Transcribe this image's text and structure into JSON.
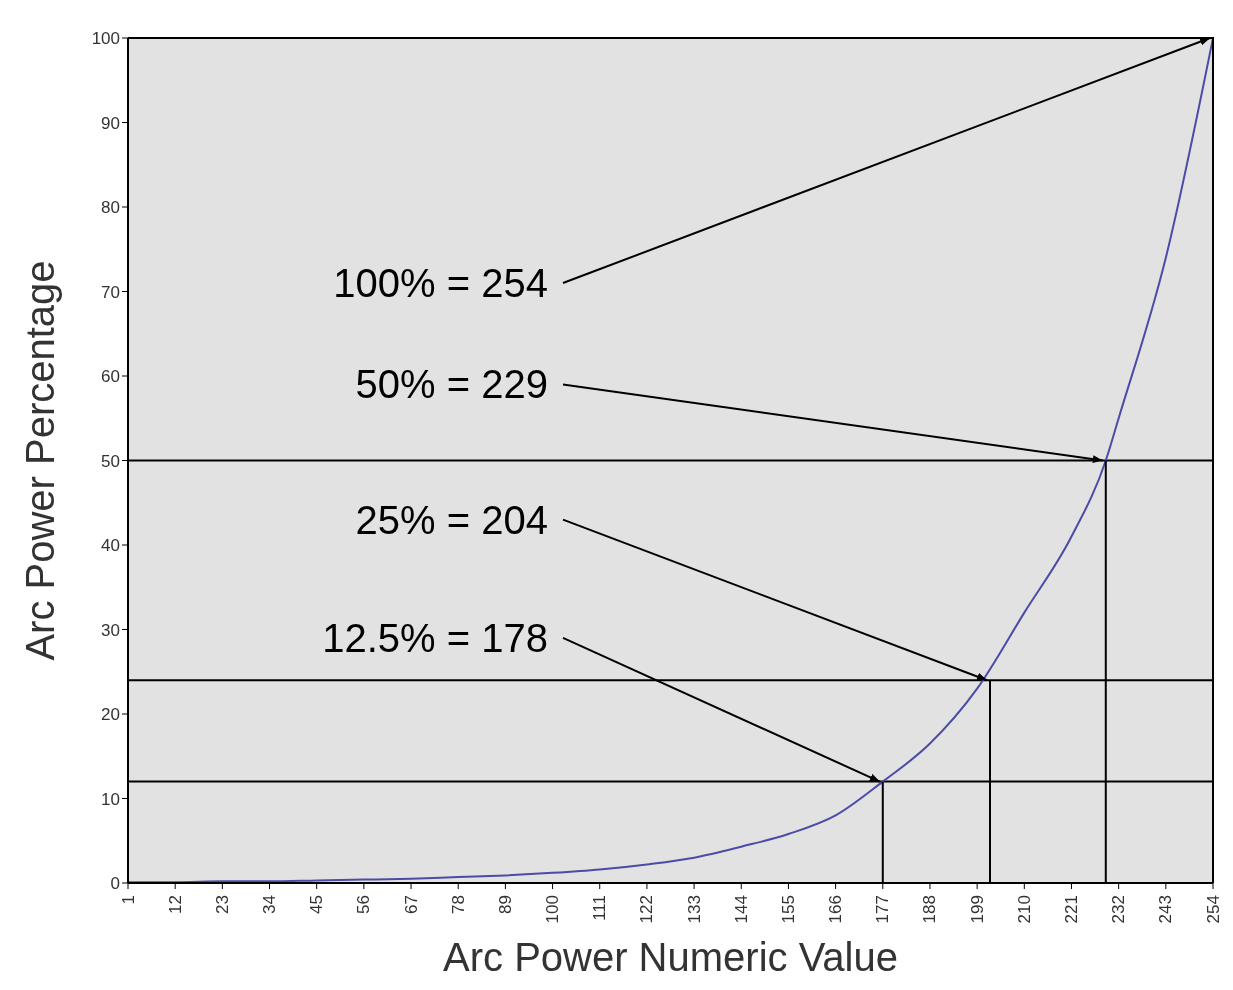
{
  "chart_data": {
    "type": "line",
    "xlabel": "Arc Power Numeric Value",
    "ylabel": "Arc Power Percentage",
    "x": [
      1,
      12,
      23,
      34,
      45,
      56,
      67,
      78,
      89,
      100,
      111,
      122,
      133,
      144,
      155,
      166,
      177,
      188,
      199,
      210,
      221,
      229,
      232,
      243,
      254
    ],
    "series": [
      {
        "color": "#4b4ba8",
        "values": [
          0.1,
          0.1,
          0.2,
          0.2,
          0.3,
          0.4,
          0.5,
          0.7,
          0.9,
          1.2,
          1.6,
          2.2,
          3.0,
          4.3,
          5.8,
          8.0,
          12,
          16.5,
          23,
          32,
          41,
          50,
          55,
          74,
          100
        ]
      }
    ],
    "xlim": [
      1,
      254
    ],
    "xticks": [
      1,
      12,
      23,
      34,
      45,
      56,
      67,
      78,
      89,
      100,
      111,
      122,
      133,
      144,
      155,
      166,
      177,
      188,
      199,
      210,
      221,
      232,
      243,
      254
    ],
    "ylim": [
      0,
      100
    ],
    "yticks": [
      0,
      10,
      20,
      30,
      40,
      50,
      60,
      70,
      80,
      90,
      100
    ],
    "ref_lines": [
      {
        "axis": "y",
        "value": 50,
        "color": "#000000"
      },
      {
        "axis": "y",
        "value": 24,
        "color": "#000000"
      },
      {
        "axis": "y",
        "value": 12,
        "color": "#000000"
      }
    ],
    "annotations": [
      {
        "text": "100% = 254",
        "x": 254,
        "y": 100
      },
      {
        "text": "50% = 229",
        "x": 229,
        "y": 50
      },
      {
        "text": "25% = 204",
        "x": 202,
        "y": 24
      },
      {
        "text": "12.5% = 178",
        "x": 177,
        "y": 12
      }
    ],
    "marker": "none",
    "grid": false
  }
}
